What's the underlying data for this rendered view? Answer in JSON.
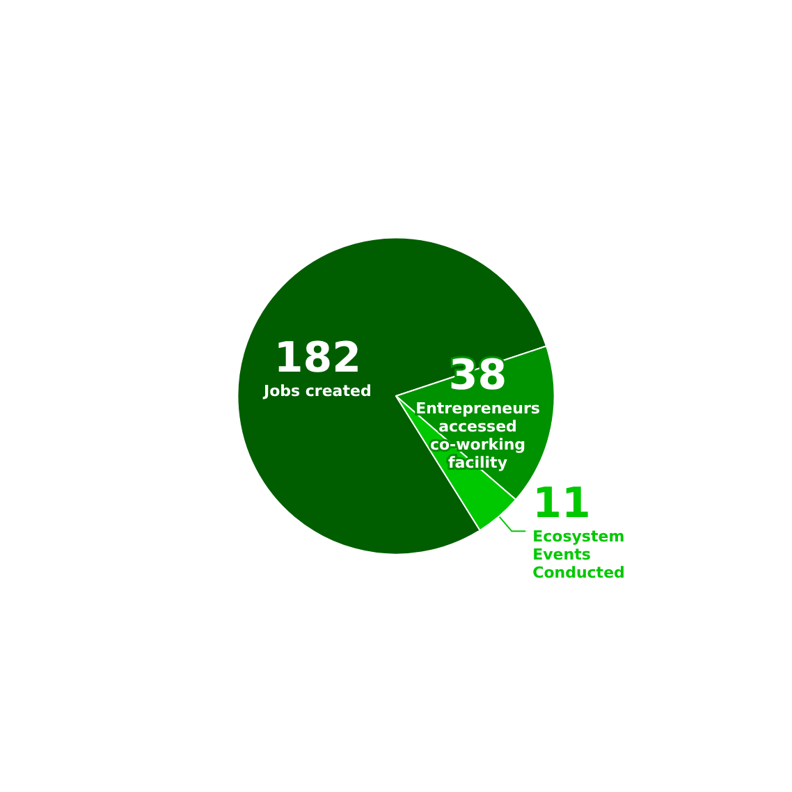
{
  "chart_data": {
    "type": "pie",
    "categories": [
      "Jobs created",
      "Entrepreneurs accessed co-working facility",
      "Ecosystem Events Conducted"
    ],
    "values": [
      182,
      38,
      11
    ],
    "colors": [
      "#005e00",
      "#009100",
      "#00c800"
    ],
    "data_labels": true
  }
}
